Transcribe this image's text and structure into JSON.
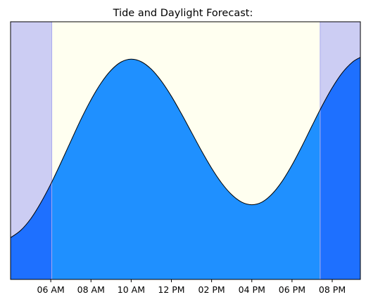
{
  "chart_data": {
    "type": "area",
    "title": "Tide and Daylight Forecast:",
    "xlabel": "",
    "ylabel": "",
    "x_unit": "hour of day",
    "xlim": [
      4.0,
      21.4
    ],
    "ylim": [
      0,
      1
    ],
    "grid": false,
    "legend": "none",
    "y_ticks_visible": false,
    "x_ticks": [
      {
        "value": 6,
        "label": "06 AM"
      },
      {
        "value": 8,
        "label": "08 AM"
      },
      {
        "value": 10,
        "label": "10 AM"
      },
      {
        "value": 12,
        "label": "12 PM"
      },
      {
        "value": 14,
        "label": "02 PM"
      },
      {
        "value": 16,
        "label": "04 PM"
      },
      {
        "value": 18,
        "label": "06 PM"
      },
      {
        "value": 20,
        "label": "08 PM"
      }
    ],
    "daylight": {
      "sunrise_hour": 6.05,
      "sunset_hour": 19.4
    },
    "tide_series": {
      "x": [
        4.0,
        4.5,
        5.0,
        5.5,
        6.0,
        6.5,
        7.0,
        7.5,
        8.0,
        8.5,
        9.0,
        9.5,
        10.0,
        10.5,
        11.0,
        11.5,
        12.0,
        12.5,
        13.0,
        13.5,
        14.0,
        14.5,
        15.0,
        15.5,
        16.0,
        16.5,
        17.0,
        17.5,
        18.0,
        18.5,
        19.0,
        19.5,
        20.0,
        20.5,
        21.0,
        21.4
      ],
      "y": [
        0.162,
        0.19,
        0.235,
        0.297,
        0.37,
        0.452,
        0.537,
        0.621,
        0.697,
        0.762,
        0.812,
        0.844,
        0.855,
        0.845,
        0.816,
        0.77,
        0.711,
        0.643,
        0.571,
        0.499,
        0.432,
        0.374,
        0.329,
        0.3,
        0.29,
        0.3,
        0.331,
        0.38,
        0.444,
        0.518,
        0.597,
        0.674,
        0.744,
        0.802,
        0.843,
        0.862
      ]
    },
    "colors": {
      "night": "#cccdf3",
      "day": "#fffff0",
      "water_day": "#1f90ff",
      "water_night": "#1e70ff",
      "night_edge": "#aaaaee",
      "tide_line": "#000000"
    }
  }
}
